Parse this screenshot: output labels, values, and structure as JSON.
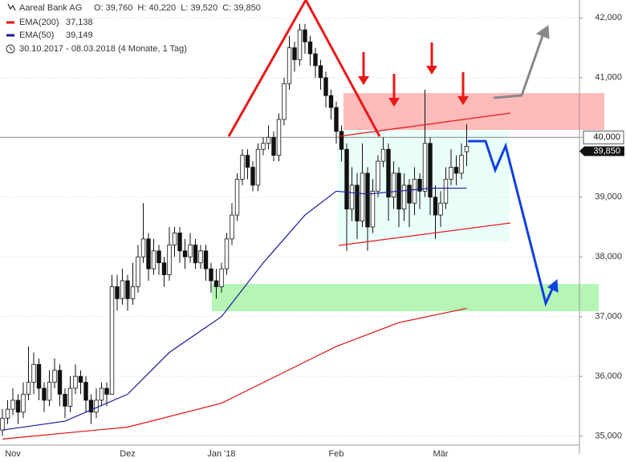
{
  "chart_data": {
    "type": "candlestick",
    "title": "Aareal Bank AG",
    "ohlc_text": "O: 39,760  H: 40,220  L: 39,520  C: 39,850",
    "date_range": "30.10.2017 - 08.03.2018 (4 Monate, 1 Tag)",
    "categories": [
      null,
      null,
      "Nov",
      null,
      null,
      null,
      null,
      null,
      null,
      null,
      null,
      null,
      null,
      null,
      null,
      null,
      null,
      null,
      null,
      null,
      null,
      null,
      null,
      null,
      "Dez",
      null,
      null,
      null,
      null,
      null,
      null,
      null,
      null,
      null,
      null,
      null,
      null,
      null,
      null,
      null,
      null,
      null,
      "Jan '18",
      null,
      null,
      null,
      null,
      null,
      null,
      null,
      null,
      null,
      null,
      null,
      null,
      null,
      null,
      null,
      null,
      null,
      null,
      null,
      null,
      null,
      "Feb",
      null,
      null,
      null,
      null,
      null,
      null,
      null,
      null,
      null,
      null,
      null,
      null,
      null,
      null,
      null,
      null,
      null,
      null,
      null,
      "Mär",
      null,
      null,
      null,
      null,
      null
    ],
    "open": [
      35100,
      35300,
      35450,
      35600,
      35400,
      35700,
      35900,
      36200,
      35800,
      35600,
      35900,
      36100,
      35700,
      35500,
      35800,
      36000,
      35900,
      35600,
      35400,
      35600,
      35800,
      35700,
      37500,
      37300,
      37600,
      37300,
      37500,
      38000,
      38300,
      37800,
      38100,
      37900,
      37700,
      38200,
      38400,
      38100,
      38000,
      38200,
      37900,
      38100,
      37800,
      37600,
      37500,
      37800,
      38300,
      38700,
      39300,
      39700,
      39500,
      39200,
      39800,
      39900,
      40000,
      39700,
      40300,
      40900,
      41500,
      41300,
      41800,
      41600,
      41400,
      41200,
      41000,
      40700,
      40500,
      40100,
      39800,
      38800,
      39200,
      38600,
      39400,
      38500,
      39100,
      39600,
      39800,
      39000,
      39400,
      38800,
      39200,
      38900,
      39300,
      39100,
      39900,
      39000,
      38700,
      38900,
      39300,
      39500,
      39400,
      39760
    ],
    "high": [
      35450,
      35600,
      35800,
      35700,
      35900,
      36500,
      36400,
      36300,
      35900,
      36100,
      36300,
      36200,
      35800,
      36000,
      36200,
      36100,
      36000,
      35700,
      35800,
      35900,
      35900,
      37700,
      37700,
      37800,
      37700,
      37900,
      38200,
      38900,
      38400,
      38300,
      38200,
      38000,
      38500,
      38500,
      38500,
      38300,
      38400,
      38300,
      38200,
      38200,
      37900,
      37800,
      37900,
      38400,
      38900,
      39400,
      39800,
      39800,
      39600,
      39900,
      40000,
      40200,
      40100,
      40400,
      41000,
      41700,
      41600,
      41900,
      41900,
      41700,
      41500,
      41300,
      41100,
      40800,
      40600,
      40200,
      39900,
      39500,
      39400,
      39900,
      39500,
      39300,
      39700,
      40000,
      39900,
      39600,
      39500,
      39400,
      39300,
      39500,
      39400,
      40800,
      40000,
      39200,
      39100,
      39500,
      39800,
      39700,
      39900,
      40220
    ],
    "low": [
      35000,
      35200,
      35350,
      35200,
      35300,
      35600,
      35700,
      35600,
      35400,
      35500,
      35800,
      35500,
      35300,
      35400,
      35700,
      35700,
      35400,
      35200,
      35300,
      35500,
      35500,
      35700,
      37100,
      37200,
      37100,
      37200,
      37400,
      37900,
      37600,
      37700,
      37700,
      37500,
      37600,
      38000,
      37900,
      37800,
      37900,
      37800,
      37800,
      37600,
      37400,
      37300,
      37400,
      37700,
      38200,
      38600,
      39200,
      39300,
      39100,
      39100,
      39700,
      39800,
      39600,
      39600,
      40200,
      40800,
      41100,
      41200,
      41400,
      41200,
      41000,
      40800,
      40500,
      40300,
      39900,
      39600,
      38100,
      38600,
      38300,
      38500,
      38100,
      38400,
      39000,
      39500,
      38600,
      38800,
      38500,
      38600,
      38500,
      38700,
      38800,
      39000,
      38700,
      38300,
      38500,
      38800,
      39200,
      39200,
      39300,
      39520
    ],
    "close": [
      35300,
      35450,
      35600,
      35400,
      35700,
      35900,
      36200,
      35800,
      35600,
      35900,
      36100,
      35700,
      35500,
      35800,
      36000,
      35900,
      35600,
      35400,
      35600,
      35800,
      35700,
      37500,
      37300,
      37600,
      37300,
      37500,
      38000,
      38300,
      37800,
      38100,
      37900,
      37700,
      38200,
      38400,
      38100,
      38000,
      38200,
      37900,
      38100,
      37800,
      37600,
      37500,
      37800,
      38300,
      38700,
      39300,
      39700,
      39500,
      39200,
      39800,
      39900,
      40000,
      39700,
      40300,
      40900,
      41500,
      41300,
      41800,
      41600,
      41400,
      41200,
      41000,
      40700,
      40500,
      40100,
      39800,
      38800,
      39200,
      38600,
      39400,
      38500,
      39100,
      39600,
      39800,
      39000,
      39400,
      38800,
      39200,
      38900,
      39300,
      39100,
      39900,
      39000,
      38700,
      38900,
      39300,
      39500,
      39400,
      39700,
      39850
    ],
    "series": [
      {
        "name": "EMA(200)",
        "legend_value": "37,138",
        "color": "#e01010",
        "x": [
          0,
          24,
          42,
          64,
          76,
          89
        ],
        "values": [
          34950,
          35150,
          35550,
          36500,
          36900,
          37138
        ]
      },
      {
        "name": "EMA(50)",
        "legend_value": "39,149",
        "color": "#1a1a9a",
        "x": [
          0,
          12,
          24,
          32,
          42,
          50,
          58,
          64,
          70,
          76,
          82,
          89
        ],
        "values": [
          35100,
          35250,
          35700,
          36400,
          37000,
          37900,
          38700,
          39100,
          39050,
          39100,
          39150,
          39149
        ]
      }
    ],
    "price_line": {
      "value": 40000,
      "label": "40,000"
    },
    "last_close_label": {
      "value": 39850,
      "label": "39,850"
    },
    "ylim": [
      34700,
      42300
    ],
    "yticks": [
      {
        "value": 35000,
        "label": "35,000"
      },
      {
        "value": 36000,
        "label": "36,000"
      },
      {
        "value": 37000,
        "label": "37,000"
      },
      {
        "value": 38000,
        "label": "38,000"
      },
      {
        "value": 39000,
        "label": "39,000"
      },
      {
        "value": 40000,
        "label": "40,000"
      },
      {
        "value": 41000,
        "label": "41,000"
      },
      {
        "value": 42000,
        "label": "42,000"
      }
    ],
    "grid": true
  }
}
